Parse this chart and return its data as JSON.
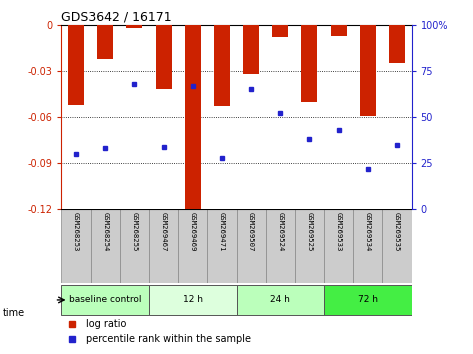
{
  "title": "GDS3642 / 16171",
  "samples": [
    "GSM268253",
    "GSM268254",
    "GSM268255",
    "GSM269467",
    "GSM269469",
    "GSM269471",
    "GSM269507",
    "GSM269524",
    "GSM269525",
    "GSM269533",
    "GSM269534",
    "GSM269535"
  ],
  "log_ratio": [
    -0.052,
    -0.022,
    -0.002,
    -0.042,
    -0.121,
    -0.053,
    -0.032,
    -0.008,
    -0.05,
    -0.007,
    -0.059,
    -0.025
  ],
  "percentile_rank": [
    30,
    33,
    68,
    34,
    67,
    28,
    65,
    52,
    38,
    43,
    22,
    35
  ],
  "ylim": [
    -0.12,
    0
  ],
  "yticks": [
    0,
    -0.03,
    -0.06,
    -0.09,
    -0.12
  ],
  "right_yticks": [
    0,
    25,
    50,
    75,
    100
  ],
  "right_ytick_labels": [
    "0",
    "25",
    "50",
    "75",
    "100%"
  ],
  "bar_color": "#cc2200",
  "dot_color": "#2222cc",
  "groups": [
    {
      "label": "baseline control",
      "start": 0,
      "end": 3,
      "color": "#bbffbb"
    },
    {
      "label": "12 h",
      "start": 3,
      "end": 6,
      "color": "#ddffdd"
    },
    {
      "label": "24 h",
      "start": 6,
      "end": 9,
      "color": "#bbffbb"
    },
    {
      "label": "72 h",
      "start": 9,
      "end": 12,
      "color": "#44ee44"
    }
  ],
  "time_label": "time",
  "legend_bar_label": "log ratio",
  "legend_dot_label": "percentile rank within the sample",
  "grid_color": "#000000",
  "axis_left_color": "#cc2200",
  "axis_right_color": "#2222cc",
  "bg_color": "#ffffff",
  "plot_bg_color": "#ffffff",
  "label_area_color": "#cccccc"
}
